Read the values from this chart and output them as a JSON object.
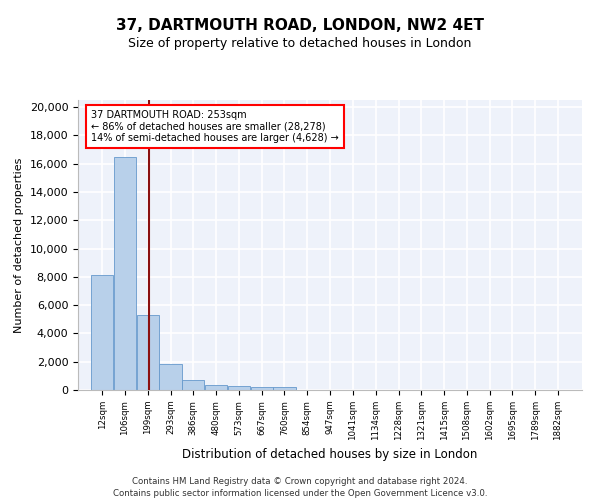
{
  "title": "37, DARTMOUTH ROAD, LONDON, NW2 4ET",
  "subtitle": "Size of property relative to detached houses in London",
  "xlabel": "Distribution of detached houses by size in London",
  "ylabel": "Number of detached properties",
  "bar_color": "#b8d0ea",
  "bar_edge_color": "#6699cc",
  "vline_color": "#8b1010",
  "background_color": "#eef2fa",
  "grid_color": "#ffffff",
  "annotation_text": "37 DARTMOUTH ROAD: 253sqm\n← 86% of detached houses are smaller (28,278)\n14% of semi-detached houses are larger (4,628) →",
  "vline_x": 253,
  "categories": [
    "12sqm",
    "106sqm",
    "199sqm",
    "293sqm",
    "386sqm",
    "480sqm",
    "573sqm",
    "667sqm",
    "760sqm",
    "854sqm",
    "947sqm",
    "1041sqm",
    "1134sqm",
    "1228sqm",
    "1321sqm",
    "1415sqm",
    "1508sqm",
    "1602sqm",
    "1695sqm",
    "1789sqm",
    "1882sqm"
  ],
  "bin_edges": [
    12,
    106,
    199,
    293,
    386,
    480,
    573,
    667,
    760,
    854,
    947,
    1041,
    1134,
    1228,
    1321,
    1415,
    1508,
    1602,
    1695,
    1789,
    1882
  ],
  "values": [
    8100,
    16500,
    5300,
    1850,
    700,
    350,
    270,
    200,
    190,
    0,
    0,
    0,
    0,
    0,
    0,
    0,
    0,
    0,
    0,
    0,
    0
  ],
  "ylim": [
    0,
    20500
  ],
  "yticks": [
    0,
    2000,
    4000,
    6000,
    8000,
    10000,
    12000,
    14000,
    16000,
    18000,
    20000
  ],
  "footer_line1": "Contains HM Land Registry data © Crown copyright and database right 2024.",
  "footer_line2": "Contains public sector information licensed under the Open Government Licence v3.0."
}
